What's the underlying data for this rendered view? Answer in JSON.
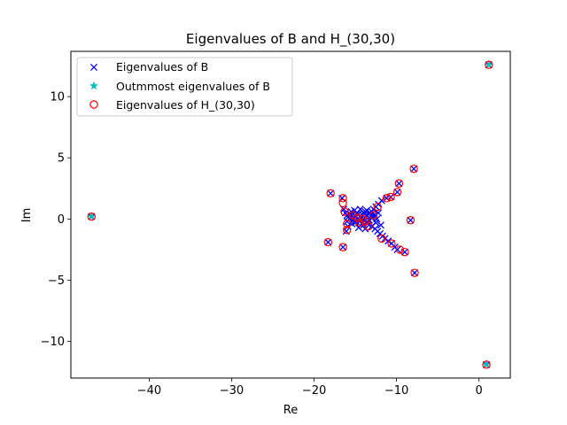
{
  "chart_data": {
    "type": "scatter",
    "title": "Eigenvalues of B and H_(30,30)",
    "xlabel": "Re",
    "ylabel": "Im",
    "xlim": [
      -49.5,
      3.8
    ],
    "ylim": [
      -13.0,
      13.7
    ],
    "xticks": [
      -40,
      -30,
      -20,
      -10,
      0
    ],
    "yticks": [
      -10,
      -5,
      0,
      5,
      10
    ],
    "xtick_labels": [
      "−40",
      "−30",
      "−20",
      "−10",
      "0"
    ],
    "ytick_labels": [
      "−10",
      "−5",
      "0",
      "5",
      "10"
    ],
    "grid": false,
    "legend_position": "top-left",
    "series": [
      {
        "name": "Eigenvalues of B",
        "marker": "x",
        "color": "#0000ff",
        "x": [
          -47.0,
          1.2,
          0.9,
          -7.9,
          -7.8,
          -8.3,
          -9.0,
          -9.7,
          -9.9,
          -10.7,
          -11.2,
          -11.8,
          -12.2,
          -12.5,
          -12.8,
          -13.0,
          -13.2,
          -13.4,
          -13.6,
          -13.8,
          -14.0,
          -14.2,
          -14.4,
          -14.6,
          -14.8,
          -15.0,
          -15.2,
          -15.4,
          -15.6,
          -15.8,
          -16.0,
          -16.2,
          -16.4,
          -16.6,
          -18.0,
          -18.3,
          -16.5,
          -16.1,
          -15.9,
          -15.4,
          -15.0,
          -14.5,
          -14.0,
          -13.5,
          -13.0,
          -12.6,
          -12.3,
          -12.0,
          -11.7,
          -11.4,
          -11.0,
          -10.6,
          -10.2,
          -9.9,
          -13.9,
          -14.7,
          -15.3,
          -12.9,
          -13.3,
          -14.3,
          -12.4,
          -15.7,
          -13.1,
          -14.1,
          -14.9,
          -12.7,
          -13.6,
          -15.1,
          -14.4,
          -13.8,
          -12.5,
          -16.0,
          -11.9,
          -12.2,
          -15.5,
          -14.6,
          -13.4
        ],
        "y": [
          0.2,
          12.6,
          -11.9,
          4.1,
          -4.4,
          -0.1,
          -2.7,
          2.9,
          2.2,
          1.8,
          1.7,
          1.5,
          1.2,
          1.0,
          0.8,
          0.6,
          0.5,
          0.4,
          0.3,
          0.6,
          0.5,
          0.4,
          0.2,
          0.4,
          0.5,
          0.3,
          0.1,
          0.3,
          0.4,
          0.2,
          0.3,
          0.5,
          0.8,
          1.7,
          2.1,
          -1.9,
          -2.3,
          -1.0,
          -0.6,
          -0.4,
          -0.3,
          -0.2,
          -0.5,
          -0.4,
          -0.6,
          -0.8,
          -1.0,
          -1.2,
          -1.4,
          -1.6,
          -1.8,
          -2.0,
          -2.3,
          -2.5,
          0.0,
          0.0,
          -0.1,
          0.1,
          -0.1,
          0.1,
          0.0,
          0.0,
          0.3,
          -0.3,
          -0.2,
          0.3,
          0.7,
          0.7,
          0.8,
          -0.8,
          -0.3,
          -0.2,
          -0.5,
          0.5,
          0.6,
          -0.7,
          -0.1
        ]
      },
      {
        "name": "Outmmost eigenvalues of B",
        "marker": "star",
        "color": "#00bfbf",
        "x": [
          -47.0,
          1.2,
          0.9
        ],
        "y": [
          0.2,
          12.6,
          -11.9
        ]
      },
      {
        "name": "Eigenvalues of H_(30,30)",
        "marker": "circle-open",
        "color": "#ff0000",
        "x": [
          -47.0,
          1.2,
          0.9,
          -7.9,
          -7.8,
          -8.3,
          -9.0,
          -9.7,
          -9.9,
          -10.7,
          -11.2,
          -11.8,
          -9.6,
          -10.6,
          -18.0,
          -18.3,
          -16.5,
          -16.5,
          -16.5,
          -16.3,
          -16.0,
          -16.0,
          -15.3,
          -14.8,
          -14.5,
          -14.1,
          -13.8,
          -13.4,
          -12.8,
          -12.3
        ],
        "y": [
          0.2,
          12.6,
          -11.9,
          4.1,
          -4.4,
          -0.1,
          -2.7,
          2.9,
          2.2,
          1.8,
          1.7,
          -1.6,
          -2.5,
          -2.0,
          2.1,
          -1.9,
          -2.3,
          1.7,
          1.3,
          0.6,
          -0.4,
          -0.9,
          0.3,
          0.1,
          -0.3,
          0.0,
          -0.2,
          -0.6,
          0.3,
          1.0
        ]
      }
    ]
  }
}
